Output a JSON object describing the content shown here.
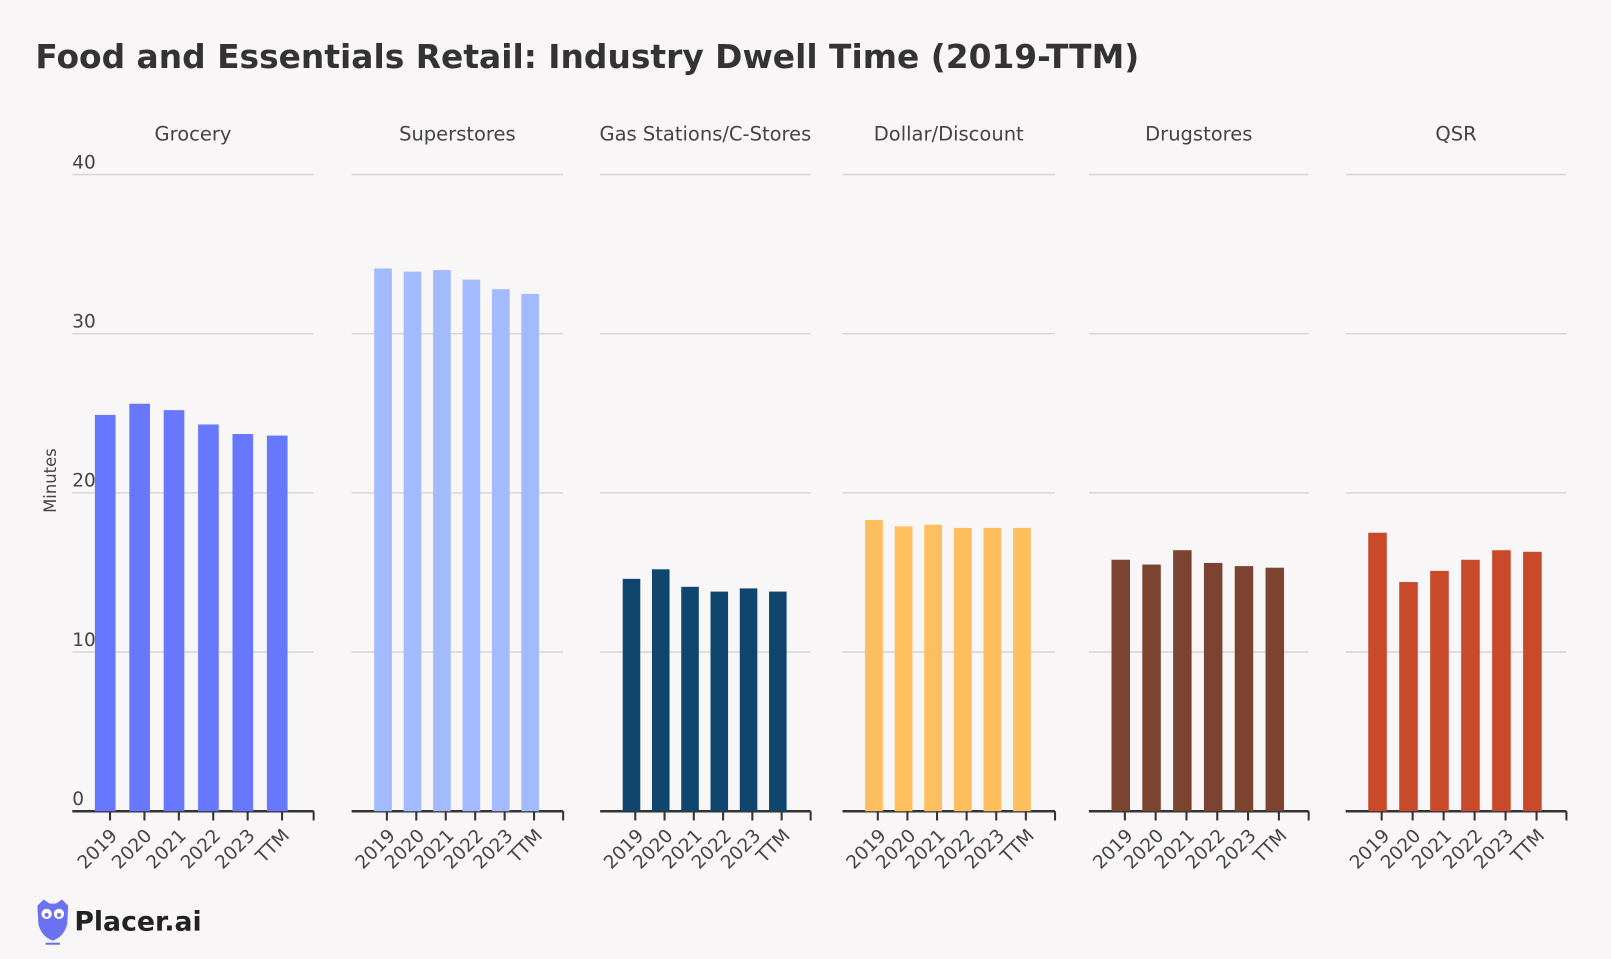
{
  "logo": {
    "text": "Placer.ai",
    "icon": "owl-icon",
    "color": "#6b72f0"
  },
  "chart_data": {
    "type": "bar",
    "title": "Food and Essentials Retail: Industry Dwell Time (2019-TTM)",
    "ylabel": "Minutes",
    "ylim": [
      0,
      40
    ],
    "yticks": [
      "0",
      "10",
      "20",
      "30",
      "40"
    ],
    "grid": true,
    "categories": [
      "2019",
      "2020",
      "2021",
      "2022",
      "2023",
      "TTM"
    ],
    "panels": [
      {
        "name": "Grocery",
        "color": "#6777fe",
        "values": [
          24.9,
          25.6,
          25.2,
          24.3,
          23.7,
          23.6
        ]
      },
      {
        "name": "Superstores",
        "color": "#a3bbfe",
        "values": [
          34.1,
          33.9,
          34.0,
          33.4,
          32.8,
          32.5
        ]
      },
      {
        "name": "Gas Stations/C-Stores",
        "color": "#10466e",
        "values": [
          14.6,
          15.2,
          14.1,
          13.8,
          14.0,
          13.8
        ]
      },
      {
        "name": "Dollar/Discount",
        "color": "#ffbf5e",
        "values": [
          18.3,
          17.9,
          18.0,
          17.8,
          17.8,
          17.8
        ]
      },
      {
        "name": "Drugstores",
        "color": "#7b4330",
        "values": [
          15.8,
          15.5,
          16.4,
          15.6,
          15.4,
          15.3
        ]
      },
      {
        "name": "QSR",
        "color": "#c94a2b",
        "values": [
          17.5,
          14.4,
          15.1,
          15.8,
          16.4,
          16.3
        ]
      }
    ]
  }
}
